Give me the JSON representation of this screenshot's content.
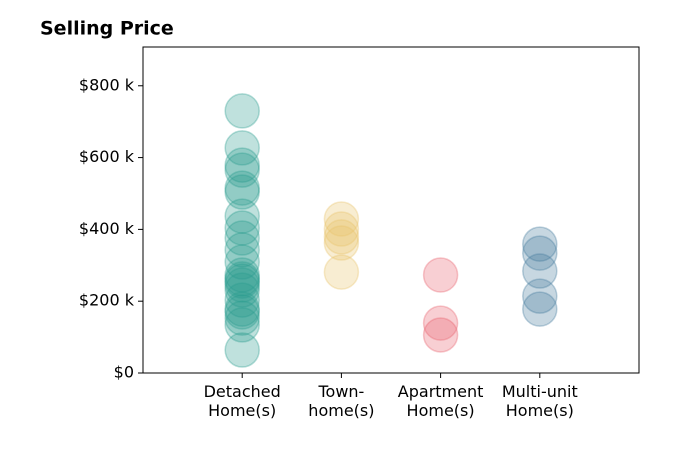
{
  "chart_data": {
    "type": "strip",
    "title": "Selling Price",
    "categories": [
      "Detached\nHome(s)",
      "Town-\nhome(s)",
      "Apartment\nHome(s)",
      "Multi-unit\nHome(s)"
    ],
    "colors": [
      "#2a9d8f",
      "#e9c46a",
      "#e8616e",
      "#457b9d"
    ],
    "values": [
      [
        730,
        627,
        579,
        565,
        515,
        504,
        437,
        404,
        376,
        343,
        309,
        273,
        262,
        256,
        245,
        231,
        203,
        178,
        170,
        153,
        134,
        64
      ],
      [
        429,
        401,
        379,
        362,
        281
      ],
      [
        273,
        139,
        106
      ],
      [
        359,
        334,
        284,
        214,
        178
      ]
    ],
    "ylim": [
      0,
      908
    ],
    "yticks": [
      {
        "value": 0,
        "label": "$0"
      },
      {
        "value": 200,
        "label": "$200 k"
      },
      {
        "value": 400,
        "label": "$400 k"
      },
      {
        "value": 600,
        "label": "$600 k"
      },
      {
        "value": 800,
        "label": "$800 k"
      }
    ]
  }
}
